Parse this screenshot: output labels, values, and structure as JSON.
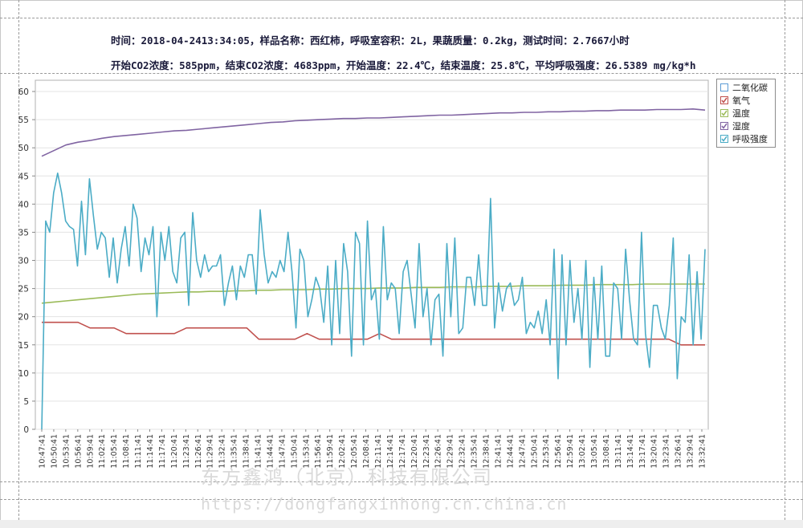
{
  "header": {
    "line1": "时间：2018-04-2413:34:05，样品名称：西红柿，呼吸室容积：2L，果蔬质量：0.2kg，测试时间：2.7667小时",
    "line2": "开始CO2浓度：585ppm，结束CO2浓度：4683ppm，开始温度：22.4℃，结束温度：25.8℃，平均呼吸强度：26.5389 mg/kg*h"
  },
  "watermark": {
    "company": "东方鑫鸿（北京）科技有限公司",
    "url": "https://dongfangxinhong.cn.china.cn"
  },
  "legend": {
    "items": [
      {
        "label": "二氧化碳",
        "color": "#5b9bd5",
        "checked": false
      },
      {
        "label": "氧气",
        "color": "#c0504d",
        "checked": true
      },
      {
        "label": "温度",
        "color": "#9bbb59",
        "checked": true
      },
      {
        "label": "湿度",
        "color": "#8064a2",
        "checked": true
      },
      {
        "label": "呼吸强度",
        "color": "#4bacc6",
        "checked": true
      }
    ]
  },
  "chart_data": {
    "type": "line",
    "ylim": [
      0,
      62
    ],
    "yticks": [
      0,
      5,
      10,
      15,
      20,
      25,
      30,
      35,
      40,
      45,
      50,
      55,
      60
    ],
    "xticks": [
      "10:47:41",
      "10:50:41",
      "10:53:41",
      "10:56:41",
      "10:59:41",
      "11:02:41",
      "11:05:41",
      "11:08:41",
      "11:11:41",
      "11:14:41",
      "11:17:41",
      "11:20:41",
      "11:23:41",
      "11:26:41",
      "11:29:41",
      "11:32:41",
      "11:35:41",
      "11:38:41",
      "11:41:41",
      "11:44:41",
      "11:47:41",
      "11:50:41",
      "11:53:41",
      "11:56:41",
      "11:59:41",
      "12:02:41",
      "12:05:41",
      "12:08:41",
      "12:11:41",
      "12:14:41",
      "12:17:41",
      "12:20:41",
      "12:23:41",
      "12:26:41",
      "12:29:41",
      "12:32:41",
      "12:35:41",
      "12:38:41",
      "12:41:41",
      "12:44:41",
      "12:47:41",
      "12:50:41",
      "12:53:41",
      "12:56:41",
      "12:59:41",
      "13:02:41",
      "13:05:41",
      "13:08:41",
      "13:11:41",
      "13:14:41",
      "13:17:41",
      "13:20:41",
      "13:23:41",
      "13:26:41",
      "13:29:41",
      "13:32:41"
    ],
    "legend_position": "top-right",
    "grid": true,
    "series": [
      {
        "name": "湿度",
        "color": "#8064a2",
        "values": [
          48.5,
          49.5,
          50.5,
          51.0,
          51.3,
          51.7,
          52.0,
          52.2,
          52.4,
          52.6,
          52.8,
          53.0,
          53.1,
          53.3,
          53.5,
          53.7,
          53.9,
          54.1,
          54.3,
          54.5,
          54.6,
          54.8,
          54.9,
          55.0,
          55.1,
          55.2,
          55.2,
          55.3,
          55.3,
          55.4,
          55.5,
          55.6,
          55.7,
          55.8,
          55.8,
          55.9,
          56.0,
          56.1,
          56.2,
          56.2,
          56.3,
          56.3,
          56.4,
          56.4,
          56.5,
          56.5,
          56.6,
          56.6,
          56.7,
          56.7,
          56.7,
          56.8,
          56.8,
          56.8,
          56.9,
          56.7
        ]
      },
      {
        "name": "温度",
        "color": "#9bbb59",
        "values": [
          22.4,
          22.6,
          22.8,
          23.0,
          23.2,
          23.4,
          23.6,
          23.8,
          24.0,
          24.1,
          24.2,
          24.3,
          24.4,
          24.4,
          24.5,
          24.5,
          24.6,
          24.6,
          24.7,
          24.7,
          24.8,
          24.8,
          24.8,
          24.9,
          24.9,
          25.0,
          25.0,
          25.0,
          25.1,
          25.1,
          25.1,
          25.2,
          25.2,
          25.2,
          25.3,
          25.3,
          25.3,
          25.4,
          25.4,
          25.4,
          25.5,
          25.5,
          25.5,
          25.6,
          25.6,
          25.6,
          25.7,
          25.7,
          25.7,
          25.7,
          25.8,
          25.8,
          25.8,
          25.8,
          25.8,
          25.8
        ]
      },
      {
        "name": "氧气",
        "color": "#c0504d",
        "values": [
          19,
          19,
          19,
          19,
          18,
          18,
          18,
          17,
          17,
          17,
          17,
          17,
          18,
          18,
          18,
          18,
          18,
          18,
          16,
          16,
          16,
          16,
          17,
          16,
          16,
          16,
          16,
          16,
          17,
          16,
          16,
          16,
          16,
          16,
          16,
          16,
          16,
          16,
          16,
          16,
          16,
          16,
          16,
          16,
          16,
          16,
          16,
          16,
          16,
          16,
          16,
          16,
          16,
          15,
          15,
          15
        ]
      },
      {
        "name": "呼吸强度",
        "color": "#4bacc6",
        "values": [
          0,
          37,
          35,
          42,
          45.5,
          42,
          37,
          36,
          35.5,
          29,
          40.5,
          31,
          44.5,
          38,
          32,
          35,
          34,
          27,
          34,
          26,
          32,
          36,
          29,
          40,
          37.5,
          28,
          34,
          31,
          36,
          20,
          35,
          30,
          36,
          28,
          26,
          34,
          35,
          22,
          38.5,
          30,
          27,
          31,
          28,
          29,
          29,
          31,
          22,
          26,
          29,
          23,
          29,
          27,
          31,
          31,
          24,
          39,
          31,
          26,
          28,
          27,
          30,
          28,
          35,
          28,
          18,
          32,
          30,
          20,
          23,
          27,
          25,
          19,
          29,
          15,
          30,
          17,
          33,
          28,
          13,
          35,
          33,
          15,
          37,
          23,
          25,
          16,
          36,
          23,
          26,
          25,
          17,
          28,
          30,
          24,
          18,
          33,
          20,
          25,
          15,
          23,
          24,
          13,
          33,
          20,
          34,
          17,
          18,
          27,
          27,
          22,
          31,
          22,
          22,
          41,
          18,
          26,
          21,
          25,
          26,
          22,
          23,
          27,
          17,
          19,
          18,
          21,
          17,
          23,
          15,
          32,
          9,
          31,
          15,
          30,
          19,
          25,
          16,
          30,
          11,
          27,
          16,
          29,
          13,
          13,
          26,
          25,
          16,
          32,
          23,
          16,
          15,
          35,
          17,
          11,
          22,
          22,
          18,
          16,
          22,
          34,
          9,
          20,
          19,
          31,
          15,
          28,
          16,
          32
        ]
      }
    ]
  }
}
